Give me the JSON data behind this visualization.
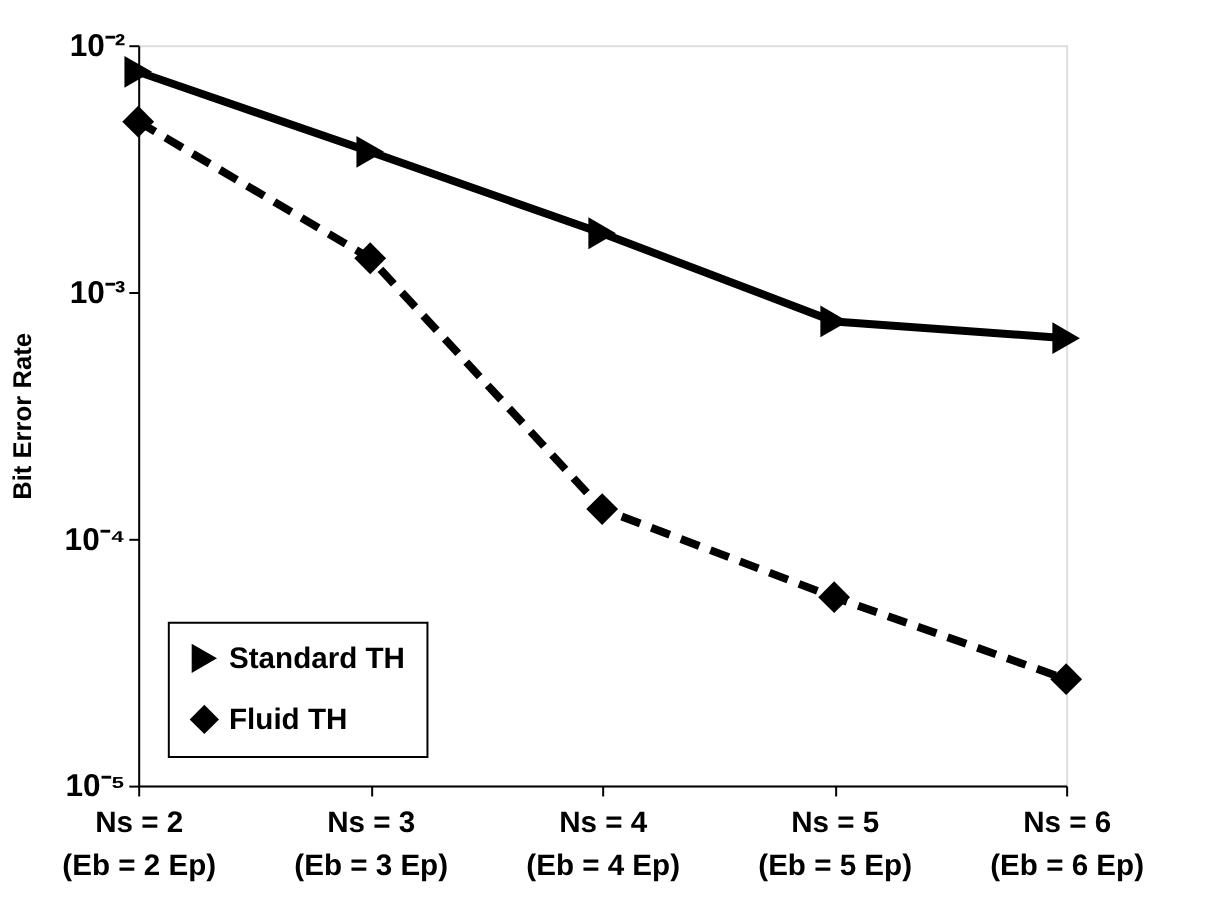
{
  "chart_data": {
    "type": "line",
    "ylabel": "Bit Error Rate",
    "categories": [
      "Ns = 2\n(Eb = 2 Ep)",
      "Ns = 3\n(Eb = 3 Ep)",
      "Ns = 4\n(Eb = 4 Ep)",
      "Ns = 5\n(Eb = 5 Ep)",
      "Ns = 6\n(Eb = 6 Ep)"
    ],
    "series": [
      {
        "name": "Standard TH",
        "color": "#000000",
        "marker": "triangle-right",
        "line_style": "solid",
        "values": [
          0.0078,
          0.0037,
          0.00173,
          0.00076,
          0.00065
        ]
      },
      {
        "name": "Fluid TH",
        "color": "#000000",
        "marker": "diamond",
        "line_style": "dashed",
        "values": [
          0.0049,
          0.00137,
          0.000132,
          5.8e-05,
          2.7e-05
        ]
      }
    ],
    "log": "y",
    "ylim": [
      1e-05,
      0.01
    ],
    "yticks": [
      {
        "value": 1e-05,
        "label": "10⁻⁵"
      },
      {
        "value": 0.0001,
        "label": "10⁻⁴"
      },
      {
        "value": 0.001,
        "label": "10⁻³"
      },
      {
        "value": 0.01,
        "label": "10⁻²"
      }
    ],
    "grid": false,
    "legend": "bottom left"
  }
}
